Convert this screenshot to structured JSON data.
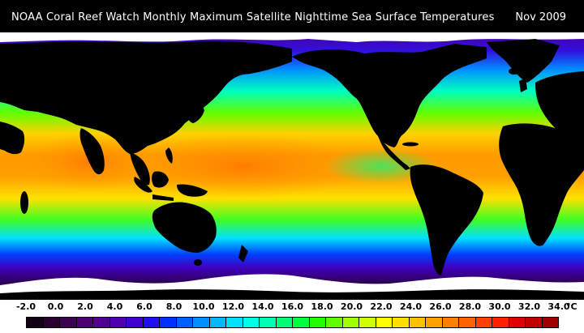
{
  "title": "NOAA Coral Reef Watch Monthly Maximum Satellite Nighttime Sea Surface Temperatures",
  "date": "Nov 2009",
  "legend": {
    "ticks": [
      "-2.0",
      "0.0",
      "2.0",
      "4.0",
      "6.0",
      "8.0",
      "10.0",
      "12.0",
      "14.0",
      "16.0",
      "18.0",
      "20.0",
      "22.0",
      "24.0",
      "26.0",
      "28.0",
      "30.0",
      "32.0",
      "34.0"
    ],
    "unit": "°C",
    "colors": [
      "#140014",
      "#2a0030",
      "#3c0050",
      "#4a0070",
      "#500090",
      "#5000b0",
      "#4000d0",
      "#2010f0",
      "#0030ff",
      "#0060ff",
      "#0090ff",
      "#00b8ff",
      "#00e0ff",
      "#00ffe8",
      "#00ffb0",
      "#00ff78",
      "#00ff40",
      "#20ff00",
      "#60ff00",
      "#a0ff00",
      "#d0ff00",
      "#ffff00",
      "#ffe000",
      "#ffc000",
      "#ffa000",
      "#ff8000",
      "#ff6000",
      "#ff4000",
      "#ff2000",
      "#e00000",
      "#c00000",
      "#a00000"
    ]
  },
  "map": {
    "land_color": "#000000",
    "ice_color": "#ffffff"
  }
}
